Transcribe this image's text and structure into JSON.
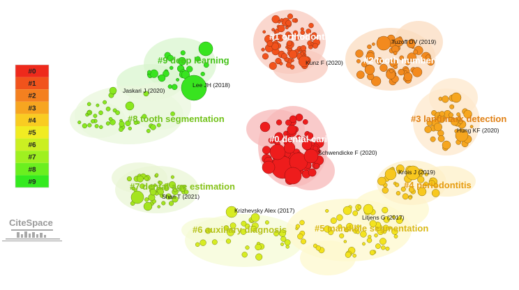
{
  "logo": {
    "text": "CiteSpace"
  },
  "legend": [
    {
      "label": "#0",
      "color": "#ee2a1c"
    },
    {
      "label": "#1",
      "color": "#f1531c"
    },
    {
      "label": "#2",
      "color": "#f4801f"
    },
    {
      "label": "#3",
      "color": "#f7a520"
    },
    {
      "label": "#4",
      "color": "#f9cc22"
    },
    {
      "label": "#5",
      "color": "#f1ec22"
    },
    {
      "label": "#6",
      "color": "#cbef22"
    },
    {
      "label": "#7",
      "color": "#9ff020"
    },
    {
      "label": "#8",
      "color": "#6bef1f"
    },
    {
      "label": "#9",
      "color": "#34ea1f"
    }
  ],
  "clusters": [
    {
      "id": "0",
      "label": "#0 dental caries",
      "node_color": "#ee1c1c",
      "hull_color": "#f7b8b8",
      "label_color": "#ffffff"
    },
    {
      "id": "1",
      "label": "#1 orthodontics",
      "node_color": "#f2521c",
      "hull_color": "#f8c9bd",
      "label_color": "#ffffff"
    },
    {
      "id": "2",
      "label": "#2 tooth numbering",
      "node_color": "#f38a1e",
      "hull_color": "#fbdcc0",
      "label_color": "#ffffff"
    },
    {
      "id": "3",
      "label": "#3 landmark detection",
      "node_color": "#f6a61f",
      "hull_color": "#fde8cc",
      "label_color": "#e07f12"
    },
    {
      "id": "4",
      "label": "#4 periodontitis",
      "node_color": "#f8c81f",
      "hull_color": "#fdf0c8",
      "label_color": "#e69c10"
    },
    {
      "id": "5",
      "label": "#5 mandible segmentation",
      "node_color": "#f3e31f",
      "hull_color": "#fdf8cd",
      "label_color": "#d9b815"
    },
    {
      "id": "6",
      "label": "#6 auxiliary diagnosis",
      "node_color": "#d7ec22",
      "hull_color": "#f6fbd6",
      "label_color": "#b6c21a"
    },
    {
      "id": "7",
      "label": "#7 dental age estimation",
      "node_color": "#a4e41f",
      "hull_color": "#eaf6d6",
      "label_color": "#86c21a"
    },
    {
      "id": "8",
      "label": "#8 tooth segmentation",
      "node_color": "#8ae81f",
      "hull_color": "#eaf7dc",
      "label_color": "#72c21a"
    },
    {
      "id": "9",
      "label": "#9 deep learning",
      "node_color": "#38e41f",
      "hull_color": "#d9f5cf",
      "label_color": "#45c21a"
    }
  ],
  "authors": [
    "Tuzoff DV (2019)",
    "Kunz F (2020)",
    "Lee JH (2018)",
    "Jaskari J (2020)",
    "Schwendicke F (2020)",
    "Hung KF (2020)",
    "Krois J (2019)",
    "Shan T (2021)",
    "Krizhevsky Alex (2017)",
    "Litjens G (2017)"
  ]
}
